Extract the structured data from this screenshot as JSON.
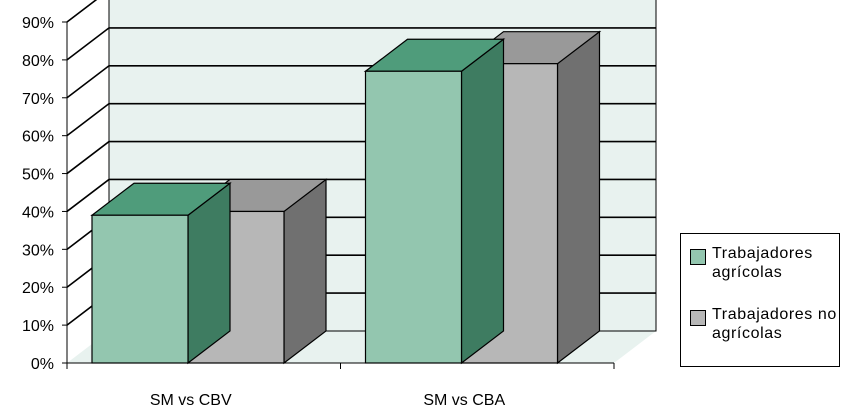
{
  "chart_data": {
    "type": "bar",
    "categories": [
      "SM vs CBV",
      "SM vs CBA"
    ],
    "series": [
      {
        "name": "Trabajadores agrícolas",
        "values": [
          39,
          77
        ]
      },
      {
        "name": "Trabajadores no agrícolas",
        "values": [
          40,
          79
        ]
      }
    ],
    "y_ticks": [
      "0%",
      "10%",
      "20%",
      "30%",
      "40%",
      "50%",
      "60%",
      "70%",
      "80%",
      "90%"
    ],
    "ylim": [
      0,
      90
    ],
    "grid": true,
    "legend_position": "right",
    "three_d": true
  },
  "colors": {
    "plot_background": "#E8F2EF",
    "agricola_front": "#93C6AF",
    "agricola_top": "#4F9C7B",
    "agricola_side": "#3E7C61",
    "no_agricola_front": "#B7B7B7",
    "no_agricola_top": "#999999",
    "no_agricola_side": "#707070"
  },
  "legend": {
    "items": [
      "Trabajadores agrícolas",
      "Trabajadores no agrícolas"
    ]
  }
}
